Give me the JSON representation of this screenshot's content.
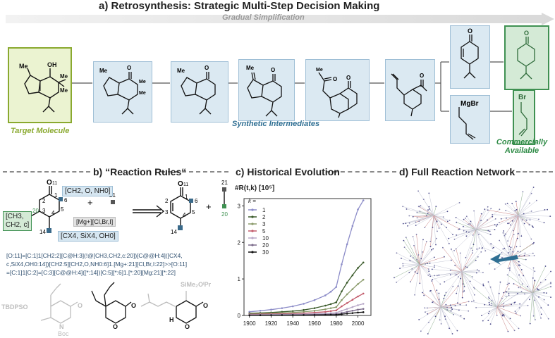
{
  "section_a": {
    "title": "a) Retrosynthesis: Strategic Multi-Step Decision Making",
    "arrow_label": "Gradual Simplification",
    "target_label": "Target Molecule",
    "intermediates_label": "Synthetic Intermediates",
    "commercial_label_1": "Commercially",
    "commercial_label_2": "Available",
    "atoms": {
      "me": "Me",
      "oh": "OH",
      "o": "O",
      "mgbr": "MgBr",
      "br": "Br"
    }
  },
  "section_b": {
    "title": "b) “Reaction Rules“",
    "tag_top": "[CH2, O, NH0]",
    "tag_left_1": "[CH3,",
    "tag_left_2": "CH2, c]",
    "tag_bottom": "[CX4, SiX4, OH0]",
    "tag_mg": "[Mg+][Cl,Br,I]",
    "plus": "+",
    "numbers": {
      "n11": "11",
      "n1": "1",
      "n2": "2",
      "n3": "3",
      "n4": "4",
      "n5": "5",
      "n6": "6",
      "n14": "14",
      "n20": "20",
      "n21": "21"
    },
    "smiles_line_1": "[O:11]=[C:1]1[CH2:2][C@H:3](!@[CH3,CH2,c:20])[C@@H:4]([CX4,",
    "smiles_line_2": "c,SiX4,OH0:14])[CH2:5][CH2,O,NH0:6]1.[Mg+:21][Cl,Br,I:22]>>[O:11]",
    "smiles_line_3": "=[C:1]1[C:2]=[C:3][C@@H:4]([*:14])[C:5][*:6]1.[*:20][Mg:21][*:22]",
    "example_labels": {
      "tbdpso": "TBDPSO",
      "boc": "Boc",
      "n": "N",
      "o": "O",
      "h": "H",
      "simeopr": "SiMe₂OⁱPr"
    }
  },
  "section_c": {
    "title": "c) Historical Evolution",
    "ylabel": "#R(t,k)  [10⁵]",
    "legend_title": "k ="
  },
  "section_d": {
    "title": "d) Full Reaction Network"
  },
  "colors": {
    "blue_box": "#dbe9f2",
    "green_box": "#d4ead6",
    "olive_box": "#ebf3d1",
    "accent_blue": "#2f6f93",
    "accent_green": "#2e8b46",
    "accent_olive": "#8aa92f"
  },
  "chart_data": {
    "type": "line",
    "xlim": [
      1895,
      2012
    ],
    "ylim": [
      0,
      3.2
    ],
    "x_ticks": [
      "1900",
      "1920",
      "1940",
      "1960",
      "1980",
      "2000"
    ],
    "y_ticks": [
      "0",
      "1",
      "2",
      "3"
    ],
    "grid": false,
    "legend_position": "top-left",
    "x": [
      1900,
      1910,
      1920,
      1930,
      1940,
      1950,
      1960,
      1970,
      1975,
      1980,
      1985,
      1990,
      1995,
      2000,
      2005
    ],
    "series": [
      {
        "name": "1",
        "color": "#8c8cc8",
        "values": [
          0.1,
          0.13,
          0.16,
          0.2,
          0.25,
          0.32,
          0.42,
          0.55,
          0.65,
          0.78,
          1.4,
          1.95,
          2.45,
          2.9,
          3.15
        ]
      },
      {
        "name": "2",
        "color": "#3a5a2a",
        "values": [
          0.06,
          0.07,
          0.08,
          0.1,
          0.12,
          0.15,
          0.2,
          0.27,
          0.31,
          0.36,
          0.66,
          0.9,
          1.1,
          1.3,
          1.45
        ]
      },
      {
        "name": "3",
        "color": "#8a9a6a",
        "values": [
          0.04,
          0.05,
          0.06,
          0.07,
          0.08,
          0.1,
          0.13,
          0.17,
          0.2,
          0.23,
          0.42,
          0.58,
          0.72,
          0.86,
          0.98
        ]
      },
      {
        "name": "5",
        "color": "#c25a6a",
        "values": [
          0.03,
          0.035,
          0.04,
          0.045,
          0.05,
          0.06,
          0.08,
          0.1,
          0.12,
          0.14,
          0.25,
          0.34,
          0.43,
          0.52,
          0.6
        ]
      },
      {
        "name": "10",
        "color": "#b8a8c8",
        "values": [
          0.02,
          0.022,
          0.025,
          0.028,
          0.03,
          0.035,
          0.045,
          0.055,
          0.065,
          0.075,
          0.13,
          0.18,
          0.23,
          0.28,
          0.32
        ]
      },
      {
        "name": "20",
        "color": "#7a6a8a",
        "values": [
          0.01,
          0.012,
          0.014,
          0.016,
          0.018,
          0.02,
          0.025,
          0.03,
          0.035,
          0.04,
          0.07,
          0.1,
          0.13,
          0.16,
          0.18
        ]
      },
      {
        "name": "30",
        "color": "#111111",
        "values": [
          0.005,
          0.006,
          0.007,
          0.008,
          0.009,
          0.01,
          0.012,
          0.015,
          0.018,
          0.02,
          0.035,
          0.05,
          0.065,
          0.08,
          0.09
        ]
      }
    ]
  }
}
